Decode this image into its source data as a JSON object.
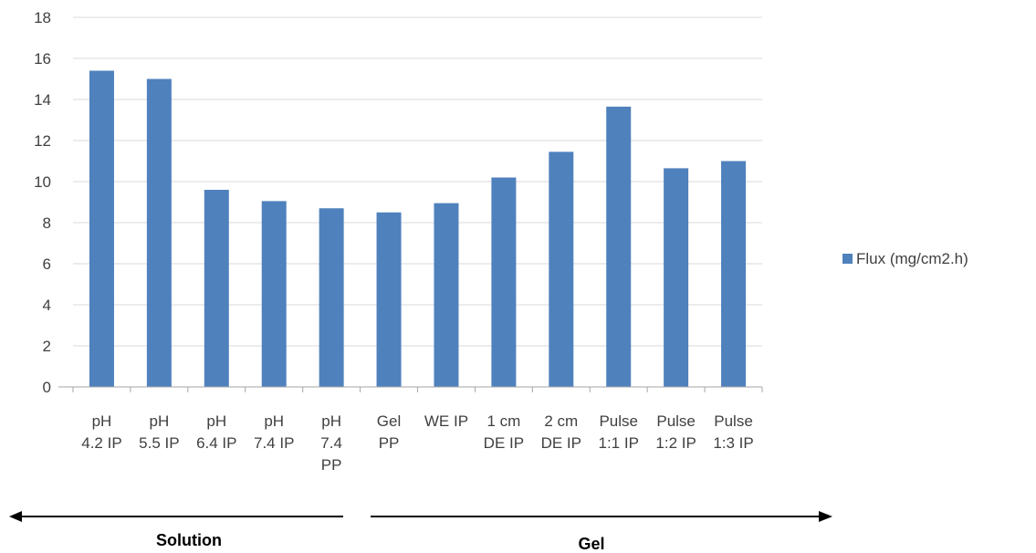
{
  "chart_data": {
    "type": "bar",
    "categories": [
      [
        "pH",
        "4.2 IP"
      ],
      [
        "pH",
        "5.5 IP"
      ],
      [
        "pH",
        "6.4 IP"
      ],
      [
        "pH",
        "7.4 IP"
      ],
      [
        "pH",
        "7.4",
        "PP"
      ],
      [
        "Gel",
        "PP"
      ],
      [
        "WE IP"
      ],
      [
        "1 cm",
        "DE IP"
      ],
      [
        "2 cm",
        "DE IP"
      ],
      [
        "Pulse",
        "1:1 IP"
      ],
      [
        "Pulse",
        "1:2 IP"
      ],
      [
        "Pulse",
        "1:3 IP"
      ]
    ],
    "series": [
      {
        "name": "Flux (mg/cm2.h)",
        "color": "#4f81bd",
        "values": [
          15.4,
          15.0,
          9.6,
          9.05,
          8.7,
          8.5,
          8.95,
          10.2,
          11.45,
          13.65,
          10.65,
          11.0
        ]
      }
    ],
    "ylim": [
      0,
      18
    ],
    "yticks": [
      0,
      2,
      4,
      6,
      8,
      10,
      12,
      14,
      16,
      18
    ],
    "grid": true,
    "legend_position": "right",
    "groups": [
      {
        "label": "Solution",
        "direction": "left"
      },
      {
        "label": "Gel",
        "direction": "right"
      }
    ]
  }
}
